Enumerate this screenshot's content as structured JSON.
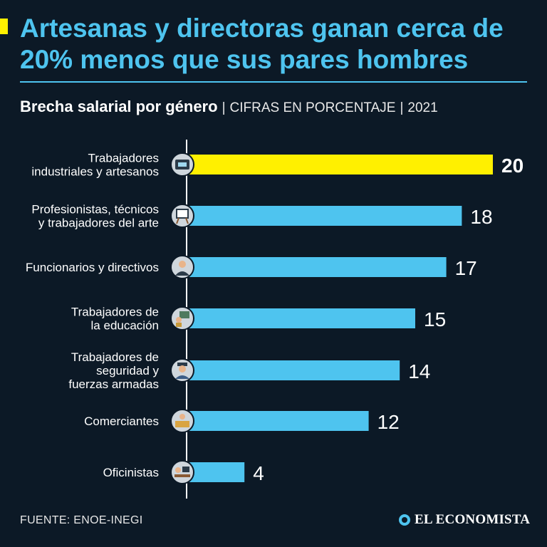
{
  "header": {
    "title": "Artesanas y directoras ganan cerca de 20% menos que sus pares hombres",
    "subtitle_main": "Brecha salarial por género",
    "subtitle_units": "CIFRAS EN PORCENTAJE",
    "subtitle_year": "2021",
    "separator": "|"
  },
  "footer": {
    "source": "FUENTE: ENOE-INEGI",
    "logo_text": "EL ECONOMISTA"
  },
  "colors": {
    "background": "#0c1926",
    "title": "#4ec4ef",
    "bar_default": "#4ec4ef",
    "bar_highlight": "#fff000",
    "icon_circle": "#cfd6dc"
  },
  "chart_data": {
    "type": "bar",
    "orientation": "horizontal",
    "title": "Brecha salarial por género",
    "xlim": [
      0,
      20
    ],
    "grid": false,
    "categories": [
      [
        "Trabajadores",
        "industriales y artesanos"
      ],
      [
        "Profesionistas, técnicos",
        "y trabajadores del arte"
      ],
      [
        "Funcionarios y directivos"
      ],
      [
        "Trabajadores de",
        "la educación"
      ],
      [
        "Trabajadores de",
        "seguridad y",
        "fuerzas armadas"
      ],
      [
        "Comerciantes"
      ],
      [
        "Oficinistas"
      ]
    ],
    "values": [
      20,
      18,
      17,
      15,
      14,
      12,
      4
    ],
    "highlight_index": 0,
    "icons": [
      "factory-machine-icon",
      "easel-art-icon",
      "businesswoman-icon",
      "teacher-icon",
      "police-officer-icon",
      "merchant-counter-icon",
      "office-worker-icon"
    ]
  }
}
